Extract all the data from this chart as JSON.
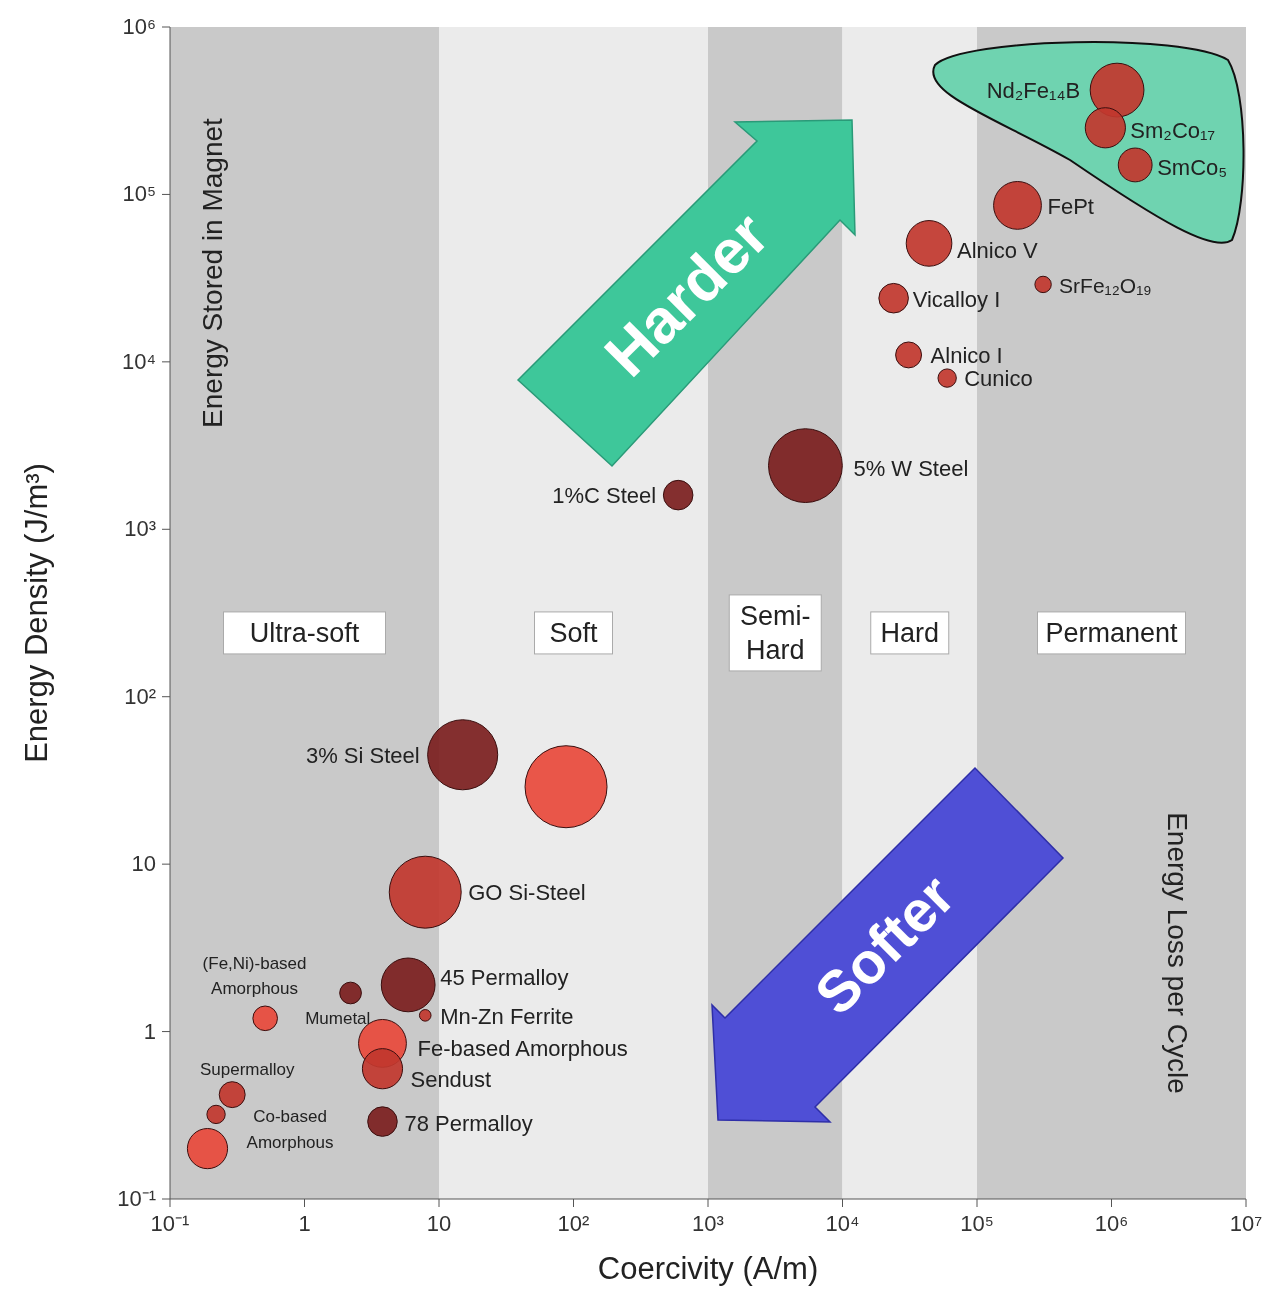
{
  "chart_data": {
    "type": "bubble",
    "xlabel": "Coercivity (A/m)",
    "ylabel": "Energy Density (J/m³)",
    "log": "xy",
    "xlim": [
      0.1,
      10000000
    ],
    "ylim": [
      0.1,
      1000000
    ],
    "xticks": [
      {
        "value": 0.1,
        "label": "10⁻¹"
      },
      1,
      10,
      {
        "value": 100,
        "label": "10²"
      },
      {
        "value": 1000,
        "label": "10³"
      },
      {
        "value": 10000,
        "label": "10⁴"
      },
      {
        "value": 100000,
        "label": "10⁵"
      },
      {
        "value": 1000000,
        "label": "10⁶"
      },
      {
        "value": 10000000,
        "label": "10⁷"
      }
    ],
    "yticks": [
      {
        "value": 0.1,
        "label": "10⁻¹"
      },
      1,
      10,
      {
        "value": 100,
        "label": "10²"
      },
      {
        "value": 1000,
        "label": "10³"
      },
      {
        "value": 10000,
        "label": "10⁴"
      },
      {
        "value": 100000,
        "label": "10⁵"
      },
      {
        "value": 1000000,
        "label": "10⁶"
      }
    ],
    "x": [
      1100000,
      900000,
      1500000,
      200000,
      44000,
      310000,
      24000,
      31000,
      60000,
      5300,
      600,
      15,
      88,
      7.9,
      5.9,
      2.2,
      0.51,
      7.9,
      3.8,
      3.8,
      0.29,
      0.22,
      0.19,
      3.8
    ],
    "values": [
      420000,
      250000,
      150000,
      86000,
      51000,
      29000,
      24000,
      11000,
      8000,
      2400,
      1600,
      45,
      29,
      6.8,
      1.9,
      1.7,
      1.2,
      1.25,
      0.85,
      0.6,
      0.42,
      0.32,
      0.2,
      0.29
    ],
    "sizes": [
      0.43,
      0.24,
      0.17,
      0.34,
      0.31,
      0.04,
      0.13,
      0.1,
      0.05,
      0.81,
      0.13,
      0.73,
      1,
      0.77,
      0.43,
      0.07,
      0.09,
      0.02,
      0.34,
      0.24,
      0.1,
      0.05,
      0.24,
      0.13
    ],
    "colors": [
      "#c1372e",
      "#c1372e",
      "#c1372e",
      "#c1372e",
      "#c1372e",
      "#c1372e",
      "#c1372e",
      "#c1372e",
      "#c1372e",
      "#7b1e1e",
      "#7b1e1e",
      "#7b1e1e",
      "#e8493b",
      "#c1372e",
      "#7b1e1e",
      "#7b1e1e",
      "#e8493b",
      "#c1372e",
      "#e8493b",
      "#c1372e",
      "#c1372e",
      "#c1372e",
      "#e8493b",
      "#7b1e1e"
    ],
    "bands": [
      {
        "axis": "x",
        "from": 0.1,
        "to": 10,
        "label": "Ultra-soft",
        "color": "#c9c9c9"
      },
      {
        "axis": "x",
        "from": 10,
        "to": 1000,
        "label": "Soft",
        "color": "#ebebeb"
      },
      {
        "axis": "x",
        "from": 1000,
        "to": 10000,
        "label": "Semi-\nHard",
        "color": "#c9c9c9"
      },
      {
        "axis": "x",
        "from": 10000,
        "to": 100000,
        "label": "Hard",
        "color": "#ebebeb"
      },
      {
        "axis": "x",
        "from": 100000,
        "to": 10000000,
        "label": "Permanent",
        "color": "#c9c9c9"
      }
    ],
    "annotations": [
      "Energy Stored in Magnet",
      "Energy Loss per Cycle",
      "Harder",
      "Softer",
      {
        "text": "Nd₂Fe₁₄B",
        "x": 1100000,
        "y": 420000
      },
      {
        "text": "Sm₂Co₁₇",
        "x": 900000,
        "y": 250000
      },
      {
        "text": "SmCo₅",
        "x": 1500000,
        "y": 150000
      },
      {
        "text": "FePt",
        "x": 200000,
        "y": 86000
      },
      {
        "text": "Alnico V",
        "x": 44000,
        "y": 51000
      },
      {
        "text": "SrFe₁₂O₁₉",
        "x": 310000,
        "y": 29000
      },
      {
        "text": "Vicalloy I",
        "x": 24000,
        "y": 24000
      },
      {
        "text": "Alnico I",
        "x": 31000,
        "y": 11000
      },
      {
        "text": "Cunico",
        "x": 60000,
        "y": 8000
      },
      {
        "text": "5% W Steel",
        "x": 5300,
        "y": 2400
      },
      {
        "text": "1%C Steel",
        "x": 600,
        "y": 1600
      },
      {
        "text": "3% Si Steel",
        "x": 15,
        "y": 45
      },
      {
        "text": "GO Si-Steel",
        "x": 7.9,
        "y": 6.8
      },
      {
        "text": "45 Permalloy",
        "x": 5.9,
        "y": 1.9
      },
      {
        "text": "(Fe,Ni)-based Amorphous",
        "x": 2.2,
        "y": 1.7
      },
      {
        "text": "Mumetal",
        "x": 0.51,
        "y": 1.2
      },
      {
        "text": "Mn-Zn Ferrite",
        "x": 7.9,
        "y": 1.25
      },
      {
        "text": "Fe-based Amorphous",
        "x": 3.8,
        "y": 0.85
      },
      {
        "text": "Sendust",
        "x": 3.8,
        "y": 0.6
      },
      {
        "text": "Supermalloy",
        "x": 0.29,
        "y": 0.42
      },
      {
        "text": "Co-based Amorphous",
        "x": 0.22,
        "y": 0.32
      },
      {
        "text": "78 Permalloy",
        "x": 3.8,
        "y": 0.29
      }
    ]
  }
}
